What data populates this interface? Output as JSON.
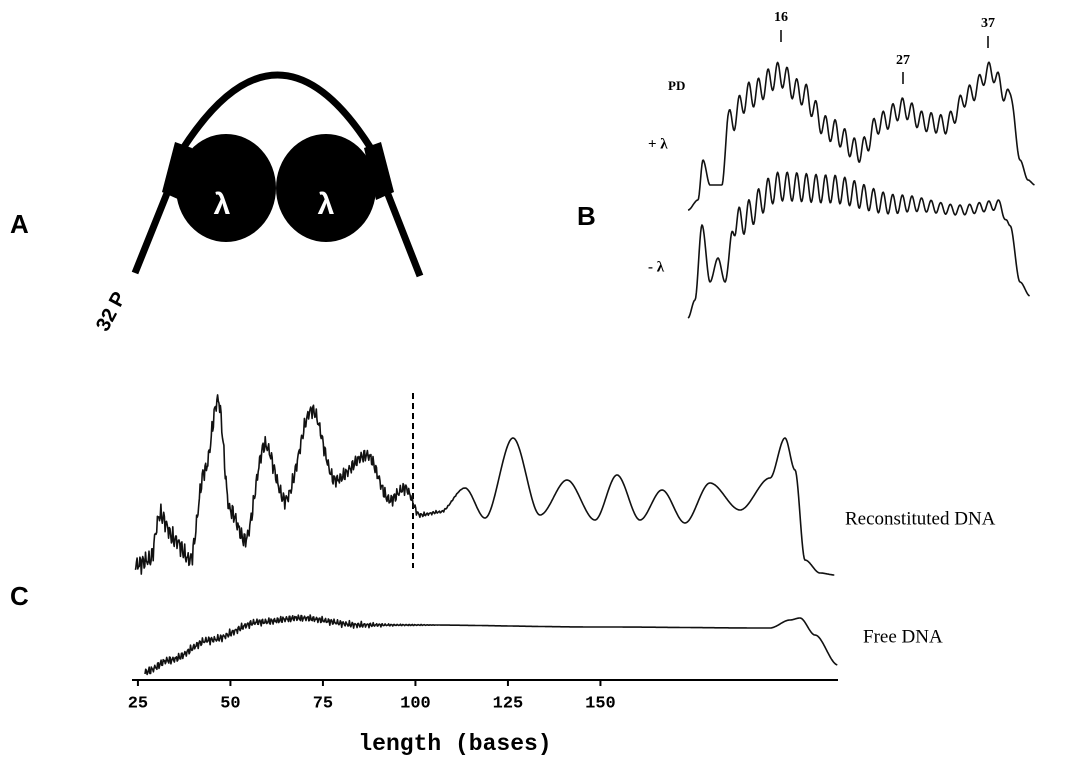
{
  "panel_a": {
    "label": "A",
    "protein": "λ",
    "isotope": "32 P"
  },
  "panel_b": {
    "label": "B",
    "peaks": [
      "16",
      "27",
      "37"
    ],
    "top_trace": "PD",
    "plus_label": "+ λ",
    "minus_label": "- λ"
  },
  "panel_c": {
    "label": "C",
    "xlabel": "length (bases)",
    "xlim": [
      23.4,
      214.2
    ],
    "xticks": [
      25,
      50,
      75,
      100,
      125,
      150
    ],
    "traces": [
      "Reconstituted DNA",
      "Free DNA"
    ]
  }
}
